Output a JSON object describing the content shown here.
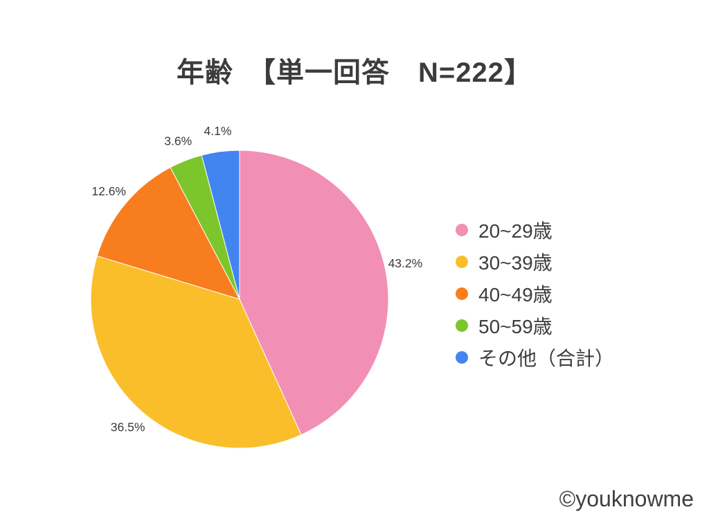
{
  "title": "年齢　【単一回答　N=222】",
  "watermark": "©youknowme",
  "chart_data": {
    "type": "pie",
    "title": "年齢 【単一回答 N=222】",
    "sample_size_label": "N=222",
    "categories": [
      "20~29歳",
      "30~39歳",
      "40~49歳",
      "50~59歳",
      "その他（合計）"
    ],
    "values": [
      43.2,
      36.5,
      12.6,
      3.6,
      4.1
    ],
    "data_labels": [
      "43.2%",
      "36.5%",
      "12.6%",
      "3.6%",
      "4.1%"
    ],
    "colors": [
      "#F28FB4",
      "#FBBE2B",
      "#F87D1E",
      "#7CC62C",
      "#4285F0"
    ],
    "unit": "%",
    "start_angle_deg": 0,
    "direction": "clockwise",
    "legend_position": "right"
  }
}
